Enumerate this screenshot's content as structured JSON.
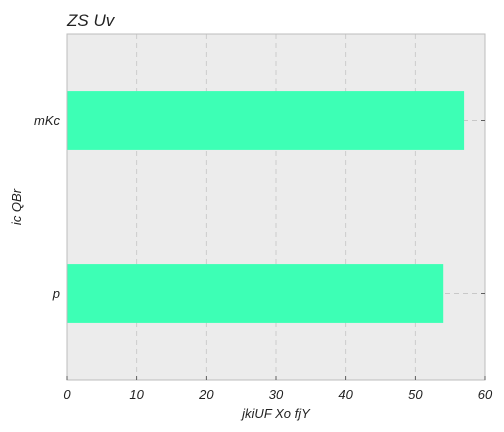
{
  "chart_data": {
    "type": "bar",
    "orientation": "horizontal",
    "title": "ZS Uv",
    "xlabel": "jkiUF Xo fjY",
    "ylabel": "ic QBr",
    "categories": [
      "mKc",
      "p"
    ],
    "values": [
      57,
      54
    ],
    "xlim": [
      0,
      60
    ],
    "xticks": [
      0,
      10,
      20,
      30,
      40,
      50,
      60
    ],
    "grid": true,
    "legend": "none",
    "colors": {
      "bar": "#3dffb5",
      "plot_background": "#ececec",
      "grid": "#c8c8c8",
      "axes_edge": "#bdbdbd"
    }
  }
}
